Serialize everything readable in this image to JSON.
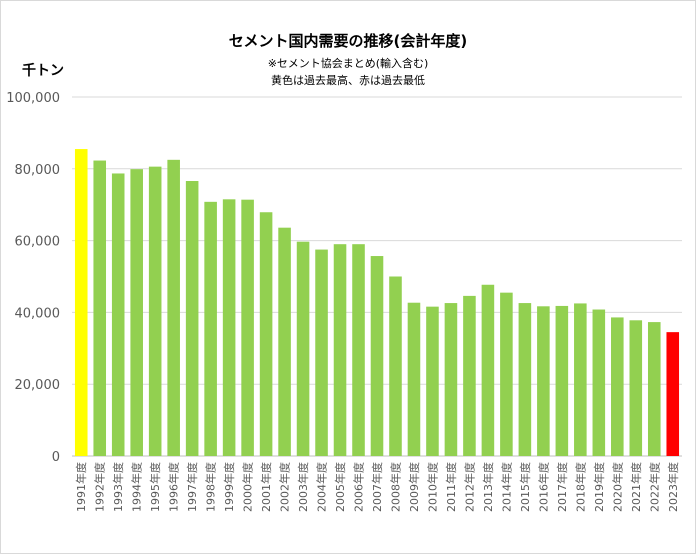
{
  "title": "セメント国内需要の推移(会計年度)",
  "subtitle1": "※セメント協会まとめ(輸入含む)",
  "subtitle2": "黄色は過去最高、赤は過去最低",
  "unit_label": "千トン",
  "colors": {
    "normal": "#92d050",
    "highest": "#ffff00",
    "lowest": "#ff0000",
    "grid": "#d9d9d9"
  },
  "chart_data": {
    "type": "bar",
    "ylim": [
      0,
      100000
    ],
    "yticks": [
      0,
      20000,
      40000,
      60000,
      80000,
      100000
    ],
    "ytick_labels": [
      "0",
      "20,000",
      "40,000",
      "60,000",
      "80,000",
      "100,000"
    ],
    "categories": [
      "1991年度",
      "1992年度",
      "1993年度",
      "1994年度",
      "1995年度",
      "1996年度",
      "1997年度",
      "1998年度",
      "1999年度",
      "2000年度",
      "2001年度",
      "2002年度",
      "2003年度",
      "2004年度",
      "2005年度",
      "2006年度",
      "2007年度",
      "2008年度",
      "2009年度",
      "2010年度",
      "2011年度",
      "2012年度",
      "2013年度",
      "2014年度",
      "2015年度",
      "2016年度",
      "2017年度",
      "2018年度",
      "2019年度",
      "2020年度",
      "2021年度",
      "2022年度",
      "2023年度"
    ],
    "values": [
      85500,
      82300,
      78700,
      79900,
      80600,
      82500,
      76600,
      70800,
      71500,
      71400,
      67900,
      63600,
      59700,
      57500,
      59000,
      59000,
      55700,
      50000,
      42700,
      41600,
      42600,
      44600,
      47700,
      45500,
      42600,
      41700,
      41800,
      42500,
      40800,
      38600,
      37800,
      37300,
      34500
    ],
    "highlights": {
      "highest_index": 0,
      "lowest_index": 32
    },
    "grid": true
  }
}
